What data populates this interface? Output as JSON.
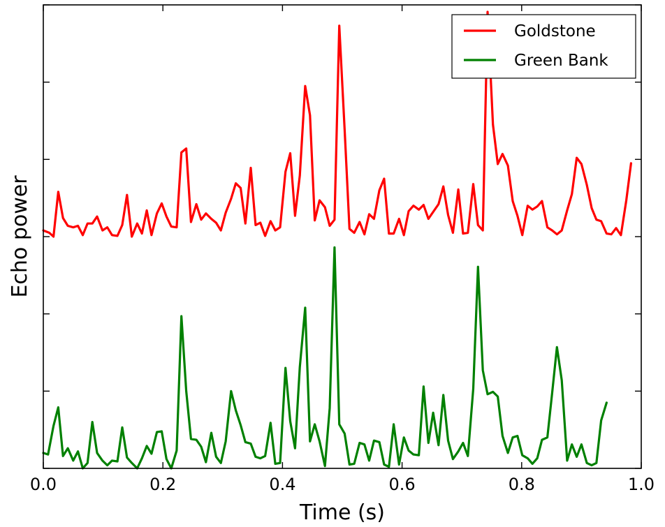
{
  "chart_data": {
    "type": "line",
    "xlabel": "Time (s)",
    "ylabel": "Echo power",
    "xlim": [
      0.0,
      1.0
    ],
    "ylim": [
      0,
      6
    ],
    "x_ticks": [
      "0.0",
      "0.2",
      "0.4",
      "0.6",
      "0.8",
      "1.0"
    ],
    "x_tick_values": [
      0.0,
      0.2,
      0.4,
      0.6,
      0.8,
      1.0
    ],
    "y_tick_values": [
      0,
      1,
      2,
      3,
      4,
      5,
      6
    ],
    "y_tick_labels_shown": false,
    "grid": false,
    "legend_position": "top-right",
    "series": [
      {
        "name": "Goldstone",
        "color": "#ff0000",
        "points": [
          [
            0.0,
            3.08
          ],
          [
            0.01,
            3.05
          ],
          [
            0.017,
            3.0
          ],
          [
            0.025,
            3.58
          ],
          [
            0.033,
            3.24
          ],
          [
            0.041,
            3.14
          ],
          [
            0.05,
            3.12
          ],
          [
            0.058,
            3.14
          ],
          [
            0.066,
            3.02
          ],
          [
            0.074,
            3.17
          ],
          [
            0.082,
            3.17
          ],
          [
            0.09,
            3.26
          ],
          [
            0.099,
            3.08
          ],
          [
            0.107,
            3.12
          ],
          [
            0.115,
            3.02
          ],
          [
            0.124,
            3.01
          ],
          [
            0.132,
            3.15
          ],
          [
            0.14,
            3.54
          ],
          [
            0.148,
            3.0
          ],
          [
            0.157,
            3.17
          ],
          [
            0.165,
            3.04
          ],
          [
            0.173,
            3.34
          ],
          [
            0.181,
            3.02
          ],
          [
            0.19,
            3.3
          ],
          [
            0.198,
            3.43
          ],
          [
            0.206,
            3.26
          ],
          [
            0.214,
            3.13
          ],
          [
            0.223,
            3.12
          ],
          [
            0.231,
            4.09
          ],
          [
            0.239,
            4.14
          ],
          [
            0.247,
            3.19
          ],
          [
            0.256,
            3.42
          ],
          [
            0.264,
            3.22
          ],
          [
            0.272,
            3.3
          ],
          [
            0.281,
            3.23
          ],
          [
            0.289,
            3.18
          ],
          [
            0.297,
            3.08
          ],
          [
            0.305,
            3.31
          ],
          [
            0.314,
            3.49
          ],
          [
            0.322,
            3.69
          ],
          [
            0.33,
            3.63
          ],
          [
            0.338,
            3.17
          ],
          [
            0.347,
            3.89
          ],
          [
            0.355,
            3.15
          ],
          [
            0.363,
            3.18
          ],
          [
            0.371,
            3.01
          ],
          [
            0.38,
            3.2
          ],
          [
            0.388,
            3.08
          ],
          [
            0.396,
            3.12
          ],
          [
            0.405,
            3.84
          ],
          [
            0.413,
            4.08
          ],
          [
            0.421,
            3.27
          ],
          [
            0.429,
            3.79
          ],
          [
            0.438,
            4.95
          ],
          [
            0.446,
            4.57
          ],
          [
            0.454,
            3.21
          ],
          [
            0.462,
            3.47
          ],
          [
            0.471,
            3.38
          ],
          [
            0.479,
            3.14
          ],
          [
            0.487,
            3.22
          ],
          [
            0.495,
            5.73
          ],
          [
            0.504,
            4.38
          ],
          [
            0.512,
            3.1
          ],
          [
            0.52,
            3.05
          ],
          [
            0.529,
            3.19
          ],
          [
            0.537,
            3.03
          ],
          [
            0.545,
            3.29
          ],
          [
            0.553,
            3.23
          ],
          [
            0.562,
            3.6
          ],
          [
            0.57,
            3.75
          ],
          [
            0.578,
            3.04
          ],
          [
            0.586,
            3.04
          ],
          [
            0.595,
            3.23
          ],
          [
            0.603,
            3.02
          ],
          [
            0.611,
            3.33
          ],
          [
            0.619,
            3.4
          ],
          [
            0.628,
            3.35
          ],
          [
            0.636,
            3.41
          ],
          [
            0.644,
            3.23
          ],
          [
            0.652,
            3.32
          ],
          [
            0.661,
            3.42
          ],
          [
            0.669,
            3.65
          ],
          [
            0.677,
            3.28
          ],
          [
            0.685,
            3.05
          ],
          [
            0.694,
            3.61
          ],
          [
            0.702,
            3.04
          ],
          [
            0.71,
            3.05
          ],
          [
            0.719,
            3.68
          ],
          [
            0.727,
            3.15
          ],
          [
            0.735,
            3.08
          ],
          [
            0.743,
            5.91
          ],
          [
            0.752,
            4.45
          ],
          [
            0.76,
            3.94
          ],
          [
            0.768,
            4.07
          ],
          [
            0.777,
            3.92
          ],
          [
            0.785,
            3.46
          ],
          [
            0.793,
            3.27
          ],
          [
            0.801,
            3.02
          ],
          [
            0.81,
            3.4
          ],
          [
            0.818,
            3.35
          ],
          [
            0.826,
            3.39
          ],
          [
            0.834,
            3.46
          ],
          [
            0.843,
            3.12
          ],
          [
            0.851,
            3.08
          ],
          [
            0.859,
            3.03
          ],
          [
            0.867,
            3.08
          ],
          [
            0.876,
            3.34
          ],
          [
            0.884,
            3.55
          ],
          [
            0.892,
            4.02
          ],
          [
            0.9,
            3.94
          ],
          [
            0.909,
            3.67
          ],
          [
            0.917,
            3.37
          ],
          [
            0.925,
            3.22
          ],
          [
            0.933,
            3.2
          ],
          [
            0.942,
            3.04
          ],
          [
            0.95,
            3.03
          ],
          [
            0.958,
            3.11
          ],
          [
            0.966,
            3.02
          ],
          [
            0.975,
            3.47
          ],
          [
            0.983,
            3.95
          ]
        ]
      },
      {
        "name": "Green Bank",
        "color": "#008000",
        "points": [
          [
            0.0,
            0.2
          ],
          [
            0.008,
            0.18
          ],
          [
            0.017,
            0.55
          ],
          [
            0.025,
            0.79
          ],
          [
            0.033,
            0.16
          ],
          [
            0.041,
            0.26
          ],
          [
            0.05,
            0.1
          ],
          [
            0.058,
            0.22
          ],
          [
            0.066,
            0.0
          ],
          [
            0.074,
            0.07
          ],
          [
            0.082,
            0.6
          ],
          [
            0.09,
            0.2
          ],
          [
            0.099,
            0.1
          ],
          [
            0.107,
            0.04
          ],
          [
            0.115,
            0.1
          ],
          [
            0.124,
            0.09
          ],
          [
            0.132,
            0.53
          ],
          [
            0.14,
            0.14
          ],
          [
            0.148,
            0.07
          ],
          [
            0.157,
            0.0
          ],
          [
            0.165,
            0.13
          ],
          [
            0.173,
            0.29
          ],
          [
            0.181,
            0.19
          ],
          [
            0.19,
            0.47
          ],
          [
            0.198,
            0.48
          ],
          [
            0.206,
            0.12
          ],
          [
            0.214,
            0.0
          ],
          [
            0.223,
            0.23
          ],
          [
            0.231,
            1.97
          ],
          [
            0.239,
            1.0
          ],
          [
            0.247,
            0.38
          ],
          [
            0.256,
            0.37
          ],
          [
            0.264,
            0.28
          ],
          [
            0.272,
            0.08
          ],
          [
            0.281,
            0.46
          ],
          [
            0.289,
            0.15
          ],
          [
            0.297,
            0.07
          ],
          [
            0.305,
            0.35
          ],
          [
            0.314,
            1.0
          ],
          [
            0.322,
            0.75
          ],
          [
            0.33,
            0.56
          ],
          [
            0.338,
            0.34
          ],
          [
            0.347,
            0.32
          ],
          [
            0.355,
            0.15
          ],
          [
            0.363,
            0.13
          ],
          [
            0.371,
            0.16
          ],
          [
            0.38,
            0.59
          ],
          [
            0.388,
            0.06
          ],
          [
            0.396,
            0.07
          ],
          [
            0.405,
            1.3
          ],
          [
            0.413,
            0.61
          ],
          [
            0.421,
            0.26
          ],
          [
            0.429,
            1.31
          ],
          [
            0.438,
            2.08
          ],
          [
            0.446,
            0.35
          ],
          [
            0.454,
            0.57
          ],
          [
            0.462,
            0.35
          ],
          [
            0.471,
            0.03
          ],
          [
            0.479,
            0.78
          ],
          [
            0.487,
            2.86
          ],
          [
            0.495,
            0.57
          ],
          [
            0.504,
            0.45
          ],
          [
            0.512,
            0.05
          ],
          [
            0.52,
            0.06
          ],
          [
            0.529,
            0.33
          ],
          [
            0.537,
            0.31
          ],
          [
            0.545,
            0.1
          ],
          [
            0.553,
            0.36
          ],
          [
            0.562,
            0.34
          ],
          [
            0.57,
            0.05
          ],
          [
            0.578,
            0.02
          ],
          [
            0.586,
            0.57
          ],
          [
            0.595,
            0.05
          ],
          [
            0.603,
            0.4
          ],
          [
            0.611,
            0.23
          ],
          [
            0.619,
            0.18
          ],
          [
            0.628,
            0.17
          ],
          [
            0.636,
            1.06
          ],
          [
            0.644,
            0.33
          ],
          [
            0.652,
            0.72
          ],
          [
            0.661,
            0.3
          ],
          [
            0.669,
            0.95
          ],
          [
            0.677,
            0.36
          ],
          [
            0.685,
            0.12
          ],
          [
            0.694,
            0.22
          ],
          [
            0.702,
            0.33
          ],
          [
            0.71,
            0.16
          ],
          [
            0.719,
            1.03
          ],
          [
            0.727,
            2.61
          ],
          [
            0.735,
            1.27
          ],
          [
            0.743,
            0.96
          ],
          [
            0.752,
            0.99
          ],
          [
            0.76,
            0.93
          ],
          [
            0.768,
            0.42
          ],
          [
            0.777,
            0.2
          ],
          [
            0.785,
            0.4
          ],
          [
            0.793,
            0.42
          ],
          [
            0.801,
            0.17
          ],
          [
            0.81,
            0.13
          ],
          [
            0.818,
            0.06
          ],
          [
            0.826,
            0.13
          ],
          [
            0.834,
            0.37
          ],
          [
            0.843,
            0.4
          ],
          [
            0.851,
            0.98
          ],
          [
            0.859,
            1.57
          ],
          [
            0.867,
            1.14
          ],
          [
            0.876,
            0.1
          ],
          [
            0.884,
            0.31
          ],
          [
            0.892,
            0.15
          ],
          [
            0.9,
            0.31
          ],
          [
            0.909,
            0.07
          ],
          [
            0.917,
            0.04
          ],
          [
            0.925,
            0.07
          ],
          [
            0.933,
            0.62
          ],
          [
            0.942,
            0.85
          ]
        ]
      }
    ]
  }
}
